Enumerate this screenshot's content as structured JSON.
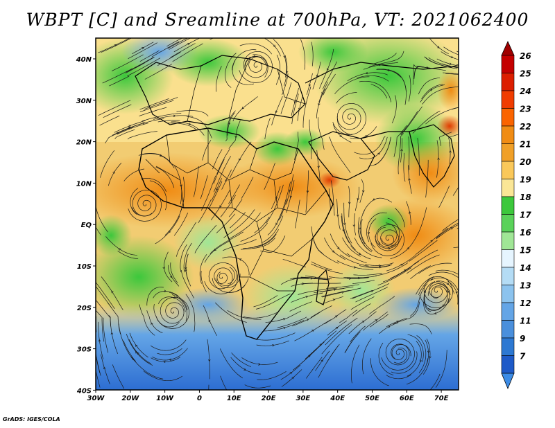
{
  "title": "WBPT [C] and Sreamline at 700hPa, VT: 2021062400",
  "credit": "GrADS: IGES/COLA",
  "map": {
    "x_ticks": [
      "30W",
      "20W",
      "10W",
      "0",
      "10E",
      "20E",
      "30E",
      "40E",
      "50E",
      "60E",
      "70E"
    ],
    "y_ticks": [
      "40N",
      "30N",
      "20N",
      "10N",
      "EQ",
      "10S",
      "20S",
      "30S",
      "40S"
    ],
    "lon_range": [
      -30,
      75
    ],
    "lat_range": [
      -40,
      45
    ]
  },
  "colorbar": {
    "labels": [
      "26",
      "25",
      "24",
      "23",
      "22",
      "21",
      "20",
      "19",
      "18",
      "17",
      "16",
      "15",
      "14",
      "13",
      "12",
      "11",
      "9",
      "7"
    ],
    "colors": [
      "#c40000",
      "#dc1e00",
      "#f03c00",
      "#fa6400",
      "#f08c14",
      "#f0a028",
      "#fac85a",
      "#fae696",
      "#3cc83c",
      "#5ad25a",
      "#a0e696",
      "#e6f5ff",
      "#b4dcf5",
      "#8cc3ee",
      "#64a5e6",
      "#4a8fdc",
      "#2d78d2",
      "#1e5ac8"
    ],
    "top_arrow_color": "#a00000",
    "bottom_arrow_color": "#3c8ce6"
  }
}
